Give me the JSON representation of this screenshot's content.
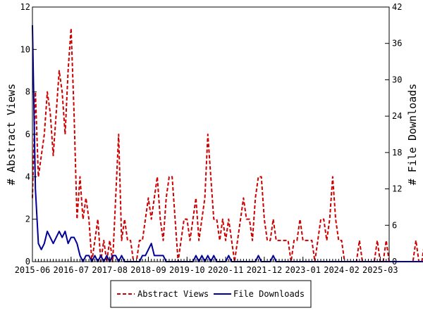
{
  "chart_data": {
    "type": "line",
    "title": "",
    "x_ticks": [
      "2015-06",
      "2016-07",
      "2017-08",
      "2018-09",
      "2019-10",
      "2020-11",
      "2021-12",
      "2023-01",
      "2024-02",
      "2025-03"
    ],
    "x_range": [
      "2015-06",
      "2025-06"
    ],
    "y_left": {
      "label": "# Abstract Views",
      "ticks": [
        0,
        2,
        4,
        6,
        8,
        10,
        12
      ],
      "range": [
        0,
        12
      ]
    },
    "y_right": {
      "label": "# File Downloads",
      "ticks": [
        0,
        6,
        12,
        18,
        24,
        30,
        36,
        42
      ],
      "range": [
        0,
        42
      ]
    },
    "grid": false,
    "legend_position": "bottom-center",
    "series": [
      {
        "name": "Abstract Views",
        "axis": "left",
        "color": "#cc0000",
        "style": "dashed",
        "start": "2015-06",
        "step_months": 1,
        "values": [
          3,
          8,
          4,
          5,
          6,
          8,
          7,
          5,
          7,
          9,
          8,
          6,
          9,
          11,
          7,
          2,
          4,
          2,
          3,
          2,
          0,
          1,
          2,
          0,
          1,
          0,
          1,
          0,
          3,
          6,
          1,
          2,
          1,
          1,
          0,
          0,
          1,
          1,
          2,
          3,
          2,
          3,
          4,
          2,
          1,
          3,
          4,
          4,
          2,
          0,
          1,
          2,
          2,
          1,
          2,
          3,
          1,
          2,
          3,
          6,
          4,
          2,
          2,
          1,
          2,
          1,
          2,
          1,
          0,
          1,
          2,
          3,
          2,
          2,
          1,
          3,
          4,
          4,
          2,
          1,
          1,
          2,
          1,
          1,
          1,
          1,
          1,
          0,
          1,
          1,
          2,
          1,
          1,
          1,
          1,
          0,
          1,
          2,
          2,
          1,
          2,
          4,
          2,
          1,
          1,
          0,
          0,
          0,
          0,
          0,
          1,
          0,
          0,
          0,
          0,
          0,
          1,
          0,
          0,
          1,
          0,
          0,
          0,
          0,
          0,
          0,
          0,
          0,
          0,
          1,
          0,
          0,
          1,
          2,
          0,
          0,
          0,
          0,
          0,
          0,
          0,
          1,
          1,
          4,
          2,
          0,
          0,
          0,
          0,
          1,
          0,
          0,
          0,
          0,
          1,
          0,
          0,
          0,
          0,
          0,
          0,
          0,
          0,
          0,
          0,
          0,
          0,
          1,
          0,
          1,
          3,
          0,
          0,
          0
        ]
      },
      {
        "name": "File Downloads",
        "axis": "right",
        "color": "#000099",
        "style": "solid",
        "start": "2015-06",
        "step_months": 1,
        "values": [
          39,
          12,
          3,
          2,
          3,
          5,
          4,
          3,
          4,
          5,
          4,
          5,
          3,
          4,
          4,
          3,
          1,
          0,
          1,
          1,
          0,
          1,
          0,
          1,
          0,
          1,
          0,
          1,
          1,
          0,
          1,
          0,
          0,
          0,
          0,
          0,
          0,
          1,
          1,
          2,
          3,
          1,
          1,
          1,
          1,
          0,
          0,
          0,
          0,
          0,
          0,
          0,
          0,
          0,
          0,
          1,
          0,
          1,
          0,
          1,
          0,
          1,
          0,
          0,
          0,
          0,
          1,
          0,
          0,
          0,
          0,
          0,
          0,
          0,
          0,
          0,
          1,
          0,
          0,
          0,
          0,
          1,
          0,
          0,
          0,
          0,
          0,
          0,
          0,
          0,
          0,
          0,
          0,
          0,
          0,
          0,
          0,
          0,
          0,
          0,
          0,
          0,
          0,
          0,
          0,
          0,
          0,
          0,
          0,
          0,
          0,
          0,
          0,
          0,
          0,
          0,
          0,
          0,
          0,
          0,
          0,
          0,
          0,
          0,
          0,
          0,
          0,
          0,
          0,
          0,
          0,
          0,
          0,
          2,
          0,
          0,
          0,
          0,
          1,
          0,
          0,
          0,
          0,
          0,
          0,
          0,
          0,
          0,
          0,
          0,
          0,
          0,
          0,
          0,
          0,
          0,
          0,
          0,
          0,
          0,
          0,
          0,
          0,
          0,
          0,
          0,
          0,
          0,
          0,
          0,
          0,
          0,
          0,
          0,
          0,
          0
        ]
      }
    ]
  }
}
